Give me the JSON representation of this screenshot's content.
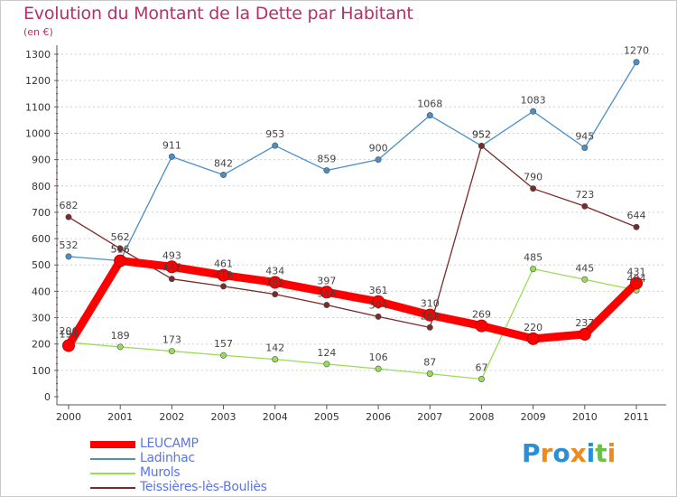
{
  "chart_data": {
    "type": "line",
    "title": "Evolution du Montant de la Dette par Habitant",
    "subtitle": "(en €)",
    "x": [
      "2000",
      "2001",
      "2002",
      "2003",
      "2004",
      "2005",
      "2006",
      "2007",
      "2008",
      "2009",
      "2010",
      "2011"
    ],
    "ylim": [
      0,
      1300
    ],
    "yticks": [
      0,
      100,
      200,
      300,
      400,
      500,
      600,
      700,
      800,
      900,
      1000,
      1100,
      1200,
      1300
    ],
    "grid": "horizontal-dashed",
    "legend_position": "bottom-left",
    "series": [
      {
        "name": "LEUCAMP",
        "color": "#ff0000",
        "values": [
          194,
          516,
          493,
          461,
          434,
          397,
          361,
          310,
          269,
          220,
          237,
          431
        ]
      },
      {
        "name": "Ladinhac",
        "color": "#4a8fc8",
        "values": [
          532,
          516,
          911,
          842,
          953,
          859,
          900,
          1068,
          952,
          1083,
          945,
          1270
        ]
      },
      {
        "name": "Murols",
        "color": "#99dd55",
        "values": [
          206,
          189,
          173,
          157,
          142,
          124,
          106,
          87,
          67,
          485,
          445,
          404
        ]
      },
      {
        "name": "Teissières-lès-Bouliès",
        "color": "#7a2a2a",
        "values": [
          682,
          562,
          447,
          419,
          389,
          348,
          304,
          263,
          952,
          790,
          723,
          644
        ]
      }
    ]
  },
  "logo": {
    "text": "Proxiti",
    "letters": [
      {
        "ch": "P",
        "color": "#2a8fd6"
      },
      {
        "ch": "r",
        "color": "#f08a1c"
      },
      {
        "ch": "o",
        "color": "#2a8fd6"
      },
      {
        "ch": "x",
        "color": "#f08a1c"
      },
      {
        "ch": "i",
        "color": "#2a8fd6"
      },
      {
        "ch": "t",
        "color": "#6cc04a"
      },
      {
        "ch": "i",
        "color": "#f08a1c"
      }
    ]
  }
}
